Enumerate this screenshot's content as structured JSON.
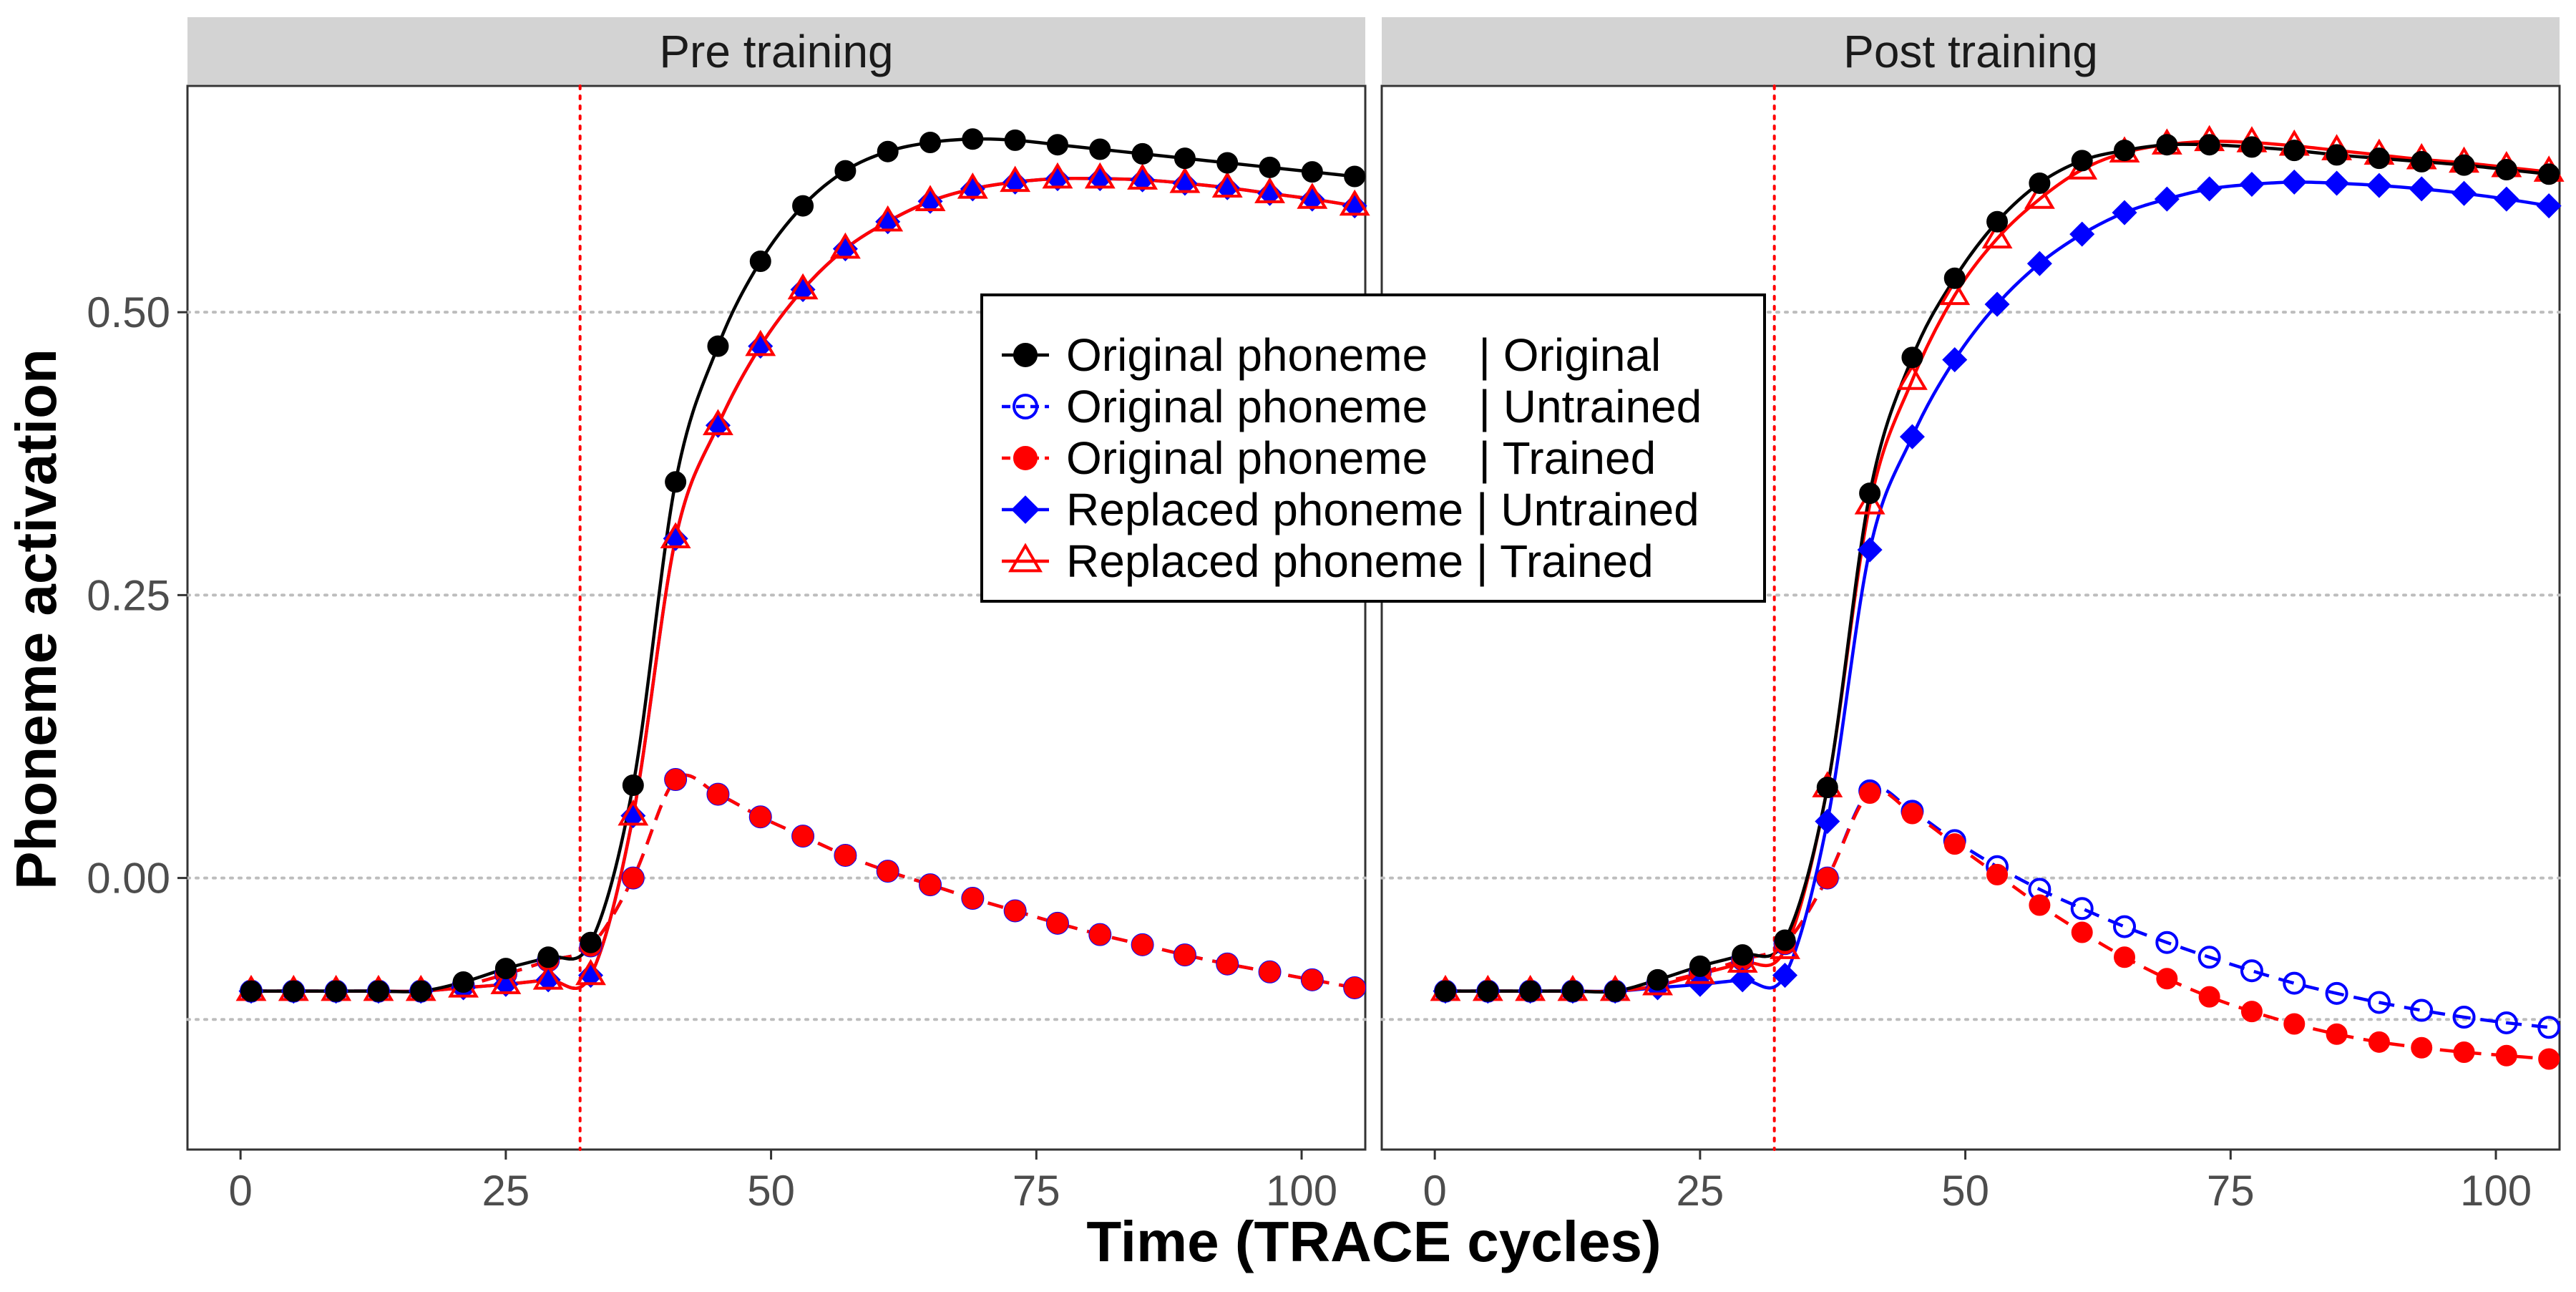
{
  "chart_data": {
    "type": "line",
    "xlabel": "Time (TRACE cycles)",
    "ylabel": "Phoneme activation",
    "xlim": [
      -5,
      106
    ],
    "ylim": [
      -0.24,
      0.7
    ],
    "x_ticks": [
      0,
      25,
      50,
      75,
      100
    ],
    "x_tick_labels": [
      "0",
      "25",
      "50",
      "75",
      "100"
    ],
    "y_ticks": [
      0.0,
      0.25,
      0.5
    ],
    "y_tick_labels": [
      "0.00",
      "0.25",
      "0.50"
    ],
    "horizontal_gridlines": [
      -0.125,
      0.0,
      0.25,
      0.5
    ],
    "vertical_marker_x": 32,
    "grid": "major y, dotted",
    "legend_position": "center",
    "legend": [
      {
        "label": "Original phoneme    | Original",
        "color": "#000000",
        "marker": "filled-circle",
        "line": "solid"
      },
      {
        "label": "Original phoneme    | Untrained",
        "color": "#0000ff",
        "marker": "open-circle",
        "line": "dashed"
      },
      {
        "label": "Original phoneme    | Trained",
        "color": "#ff0000",
        "marker": "filled-circle",
        "line": "dashed"
      },
      {
        "label": "Replaced phoneme | Untrained",
        "color": "#0000ff",
        "marker": "filled-diamond",
        "line": "solid"
      },
      {
        "label": "Replaced phoneme | Trained",
        "color": "#ff0000",
        "marker": "open-triangle",
        "line": "solid"
      }
    ],
    "x": [
      1,
      5,
      9,
      13,
      17,
      21,
      25,
      29,
      33,
      37,
      41,
      45,
      49,
      53,
      57,
      61,
      65,
      69,
      73,
      77,
      81,
      85,
      89,
      93,
      97,
      101,
      105
    ],
    "panels": [
      {
        "title": "Pre training",
        "series": [
          {
            "key": "orig_orig",
            "values": [
              -0.1,
              -0.1,
              -0.1,
              -0.1,
              -0.1,
              -0.092,
              -0.08,
              -0.07,
              -0.057,
              0.082,
              0.35,
              0.47,
              0.545,
              0.594,
              0.625,
              0.642,
              0.65,
              0.653,
              0.652,
              0.648,
              0.644,
              0.64,
              0.636,
              0.632,
              0.628,
              0.624,
              0.62
            ]
          },
          {
            "key": "orig_untr",
            "values": [
              -0.1,
              -0.1,
              -0.1,
              -0.1,
              -0.1,
              -0.095,
              -0.085,
              -0.073,
              -0.06,
              0.0,
              0.087,
              0.074,
              0.054,
              0.037,
              0.02,
              0.006,
              -0.006,
              -0.018,
              -0.029,
              -0.04,
              -0.05,
              -0.059,
              -0.068,
              -0.076,
              -0.083,
              -0.09,
              -0.097
            ]
          },
          {
            "key": "orig_train",
            "values": [
              -0.1,
              -0.1,
              -0.1,
              -0.1,
              -0.1,
              -0.095,
              -0.085,
              -0.073,
              -0.06,
              0.0,
              0.087,
              0.074,
              0.054,
              0.037,
              0.02,
              0.006,
              -0.006,
              -0.018,
              -0.029,
              -0.04,
              -0.05,
              -0.059,
              -0.068,
              -0.076,
              -0.083,
              -0.09,
              -0.097
            ]
          },
          {
            "key": "repl_untr",
            "values": [
              -0.1,
              -0.1,
              -0.1,
              -0.1,
              -0.1,
              -0.097,
              -0.094,
              -0.09,
              -0.086,
              0.055,
              0.3,
              0.4,
              0.47,
              0.52,
              0.556,
              0.58,
              0.598,
              0.609,
              0.615,
              0.618,
              0.618,
              0.617,
              0.614,
              0.61,
              0.605,
              0.6,
              0.594
            ]
          },
          {
            "key": "repl_train",
            "values": [
              -0.1,
              -0.1,
              -0.1,
              -0.1,
              -0.1,
              -0.097,
              -0.094,
              -0.09,
              -0.086,
              0.055,
              0.3,
              0.4,
              0.47,
              0.52,
              0.556,
              0.58,
              0.598,
              0.609,
              0.615,
              0.618,
              0.618,
              0.617,
              0.614,
              0.61,
              0.605,
              0.6,
              0.594
            ]
          }
        ]
      },
      {
        "title": "Post training",
        "series": [
          {
            "key": "orig_orig",
            "values": [
              -0.1,
              -0.1,
              -0.1,
              -0.1,
              -0.1,
              -0.09,
              -0.078,
              -0.068,
              -0.055,
              0.08,
              0.34,
              0.46,
              0.53,
              0.58,
              0.614,
              0.634,
              0.643,
              0.648,
              0.648,
              0.646,
              0.643,
              0.639,
              0.636,
              0.633,
              0.63,
              0.626,
              0.622
            ]
          },
          {
            "key": "orig_untr",
            "values": [
              -0.1,
              -0.1,
              -0.1,
              -0.1,
              -0.1,
              -0.093,
              -0.084,
              -0.072,
              -0.058,
              0.0,
              0.077,
              0.059,
              0.033,
              0.01,
              -0.01,
              -0.027,
              -0.043,
              -0.057,
              -0.07,
              -0.082,
              -0.093,
              -0.102,
              -0.11,
              -0.117,
              -0.123,
              -0.128,
              -0.132
            ]
          },
          {
            "key": "orig_train",
            "values": [
              -0.1,
              -0.1,
              -0.1,
              -0.1,
              -0.1,
              -0.093,
              -0.084,
              -0.072,
              -0.058,
              0.0,
              0.075,
              0.057,
              0.03,
              0.003,
              -0.024,
              -0.048,
              -0.07,
              -0.089,
              -0.105,
              -0.118,
              -0.129,
              -0.138,
              -0.145,
              -0.15,
              -0.154,
              -0.157,
              -0.16
            ]
          },
          {
            "key": "repl_untr",
            "values": [
              -0.1,
              -0.1,
              -0.1,
              -0.1,
              -0.1,
              -0.097,
              -0.094,
              -0.09,
              -0.086,
              0.05,
              0.29,
              0.39,
              0.458,
              0.507,
              0.543,
              0.569,
              0.588,
              0.6,
              0.609,
              0.613,
              0.615,
              0.614,
              0.612,
              0.609,
              0.605,
              0.6,
              0.594
            ]
          },
          {
            "key": "repl_train",
            "values": [
              -0.1,
              -0.1,
              -0.1,
              -0.1,
              -0.1,
              -0.095,
              -0.085,
              -0.075,
              -0.063,
              0.08,
              0.33,
              0.44,
              0.515,
              0.565,
              0.6,
              0.626,
              0.641,
              0.648,
              0.651,
              0.65,
              0.647,
              0.643,
              0.639,
              0.635,
              0.632,
              0.628,
              0.624
            ]
          }
        ]
      }
    ]
  }
}
